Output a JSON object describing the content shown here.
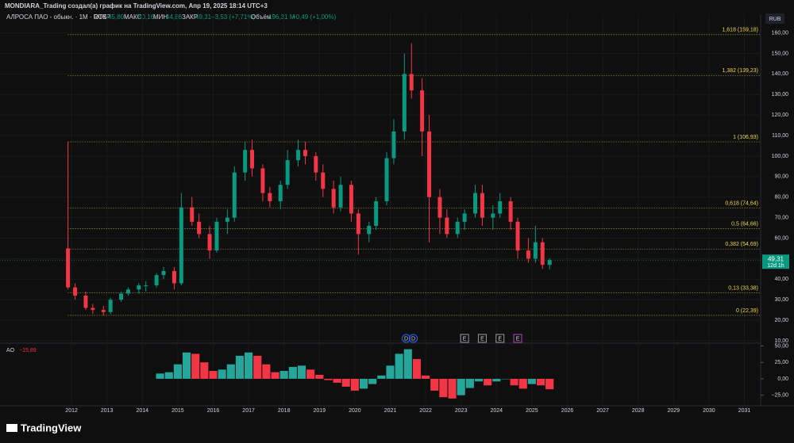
{
  "header": {
    "credit": "MONDIARA_Trading создал(а) график на TradingView.com, Апр 19, 2025 18:14 UTC+3",
    "symbol": "АЛРОСА ПАО - обыкн. · 1M · RUS",
    "open_label": "ОТКР",
    "open": "45,80",
    "high_label": "МАКС",
    "high": "50,16",
    "low_label": "МИН",
    "low": "44,86",
    "close_label": "ЗАКР",
    "close": "49,31",
    "change": "+3,53 (+7,71%)",
    "volume_label": "Объём",
    "volume": "196,31 M",
    "volume_change": "+0,49 (+1,00%)",
    "currency": "RUB",
    "logo": "TradingView"
  },
  "chart_data": [
    {
      "type": "candlestick",
      "up_color": "#089981",
      "down_color": "#f23645",
      "x": [
        2011.9,
        2012.1,
        2012.4,
        2012.6,
        2012.9,
        2013.1,
        2013.4,
        2013.6,
        2013.9,
        2014.1,
        2014.4,
        2014.6,
        2014.9,
        2015.1,
        2015.4,
        2015.6,
        2015.9,
        2016.1,
        2016.4,
        2016.6,
        2016.9,
        2017.1,
        2017.4,
        2017.6,
        2017.9,
        2018.1,
        2018.4,
        2018.6,
        2018.9,
        2019.1,
        2019.4,
        2019.6,
        2019.9,
        2020.1,
        2020.4,
        2020.6,
        2020.9,
        2021.1,
        2021.4,
        2021.6,
        2021.9,
        2022.1,
        2022.4,
        2022.6,
        2022.9,
        2023.1,
        2023.4,
        2023.6,
        2023.9,
        2024.1,
        2024.4,
        2024.6,
        2024.9,
        2025.1,
        2025.3,
        2025.5
      ],
      "open": [
        55,
        36,
        32,
        26,
        25,
        24,
        30,
        33,
        35,
        37,
        37,
        42,
        44,
        38,
        75,
        68,
        62,
        54,
        68,
        70,
        92,
        103,
        94,
        82,
        78,
        86,
        98,
        103,
        100,
        92,
        84,
        75,
        86,
        72,
        62,
        66,
        78,
        99,
        112,
        140,
        132,
        112,
        80,
        70,
        62,
        68,
        72,
        82,
        70,
        72,
        78,
        68,
        54,
        50,
        58,
        47
      ],
      "high": [
        107,
        38,
        34,
        28,
        27,
        31,
        34,
        36,
        38,
        39,
        43,
        46,
        46,
        82,
        80,
        72,
        66,
        70,
        74,
        95,
        107,
        108,
        96,
        85,
        88,
        103,
        108,
        107,
        102,
        96,
        88,
        90,
        88,
        74,
        68,
        80,
        102,
        118,
        150,
        155,
        138,
        120,
        84,
        74,
        70,
        74,
        86,
        86,
        76,
        82,
        80,
        70,
        60,
        66,
        60,
        50.16
      ],
      "low": [
        35,
        30,
        25,
        23,
        22.4,
        23,
        29,
        32,
        33,
        34,
        36,
        40,
        35,
        37,
        66,
        60,
        50,
        53,
        62,
        68,
        88,
        90,
        78,
        75,
        74,
        84,
        95,
        96,
        88,
        80,
        72,
        73,
        68,
        52,
        58,
        64,
        76,
        96,
        108,
        128,
        100,
        58,
        62,
        60,
        60,
        64,
        70,
        66,
        64,
        70,
        64,
        50,
        48,
        48,
        45,
        44.86
      ],
      "close": [
        36,
        32,
        26,
        25,
        24,
        30,
        33,
        35,
        37,
        37,
        42,
        44,
        38,
        75,
        68,
        62,
        54,
        68,
        70,
        92,
        103,
        94,
        82,
        78,
        86,
        98,
        103,
        100,
        92,
        84,
        75,
        86,
        72,
        62,
        66,
        78,
        99,
        112,
        140,
        132,
        112,
        80,
        70,
        62,
        68,
        72,
        82,
        70,
        72,
        78,
        68,
        54,
        50,
        58,
        47,
        49.31
      ],
      "fib_levels": [
        {
          "label": "1,618 (159,18)",
          "value": 159.18
        },
        {
          "label": "1,382 (139,23)",
          "value": 139.23
        },
        {
          "label": "1 (106,93)",
          "value": 106.93
        },
        {
          "label": "0,618 (74,64)",
          "value": 74.64
        },
        {
          "label": "0,5 (64,66)",
          "value": 64.66
        },
        {
          "label": "0,382 (54,69)",
          "value": 54.69
        },
        {
          "label": "0,13 (33,38)",
          "value": 33.38
        },
        {
          "label": "0 (22,39)",
          "value": 22.39
        }
      ],
      "fib_color": "#b5b53a",
      "last_price": {
        "value": 49.31,
        "label": "49,31"
      },
      "countdown": "12d 1h",
      "events": [
        {
          "x": 2021.45,
          "label": "D"
        },
        {
          "x": 2021.65,
          "label": "D"
        },
        {
          "x": 2023.1,
          "label": "E"
        },
        {
          "x": 2023.6,
          "label": "E"
        },
        {
          "x": 2024.1,
          "label": "E"
        },
        {
          "x": 2024.6,
          "label": "E"
        }
      ],
      "xlim": [
        2009.98,
        2031.46
      ],
      "xticks": [
        2012,
        2013,
        2014,
        2015,
        2016,
        2017,
        2018,
        2019,
        2020,
        2021,
        2022,
        2023,
        2024,
        2025,
        2026,
        2027,
        2028,
        2029,
        2030,
        2031
      ],
      "ylim": [
        10,
        169.1
      ],
      "yticks": [
        {
          "value": 10,
          "label": "10,00"
        },
        {
          "value": 20,
          "label": "20,00"
        },
        {
          "value": 30,
          "label": "30,00"
        },
        {
          "value": 40,
          "label": "40,00"
        },
        {
          "value": 50,
          "label": "50,00"
        },
        {
          "value": 60,
          "label": "60,00"
        },
        {
          "value": 70,
          "label": "70,00"
        },
        {
          "value": 80,
          "label": "80,00"
        },
        {
          "value": 90,
          "label": "90,00"
        },
        {
          "value": 100,
          "label": "100,00"
        },
        {
          "value": 110,
          "label": "110,00"
        },
        {
          "value": 120,
          "label": "120,00"
        },
        {
          "value": 130,
          "label": "130,00"
        },
        {
          "value": 140,
          "label": "140,00"
        },
        {
          "value": 150,
          "label": "150,00"
        },
        {
          "value": 160,
          "label": "160,00"
        }
      ]
    },
    {
      "type": "bar",
      "title": "AO",
      "last_label": "−15,89",
      "up_color": "#26a69a",
      "down_color": "#f23645",
      "x": [
        2014.5,
        2014.75,
        2015,
        2015.25,
        2015.5,
        2015.75,
        2016,
        2016.25,
        2016.5,
        2016.75,
        2017,
        2017.25,
        2017.5,
        2017.75,
        2018,
        2018.25,
        2018.5,
        2018.75,
        2019,
        2019.25,
        2019.5,
        2019.75,
        2020,
        2020.25,
        2020.5,
        2020.75,
        2021,
        2021.25,
        2021.5,
        2021.75,
        2022,
        2022.25,
        2022.5,
        2022.75,
        2023,
        2023.25,
        2023.5,
        2023.75,
        2024,
        2024.25,
        2024.5,
        2024.75,
        2025,
        2025.25,
        2025.5
      ],
      "values": [
        8,
        10,
        22,
        40,
        38,
        25,
        12,
        14,
        22,
        35,
        40,
        35,
        22,
        10,
        12,
        18,
        20,
        14,
        6,
        -2,
        -6,
        -12,
        -18,
        -15,
        -8,
        5,
        20,
        38,
        45,
        30,
        5,
        -18,
        -28,
        -30,
        -25,
        -14,
        -4,
        -10,
        -4,
        0,
        -10,
        -15,
        -8,
        -10,
        -15.89
      ],
      "ylim": [
        -41,
        54.2
      ],
      "yticks": [
        {
          "value": 50,
          "label": "50,00"
        },
        {
          "value": 25,
          "label": "25,00"
        },
        {
          "value": 0,
          "label": "0,00"
        },
        {
          "value": -25,
          "label": "−25,00"
        }
      ]
    }
  ]
}
